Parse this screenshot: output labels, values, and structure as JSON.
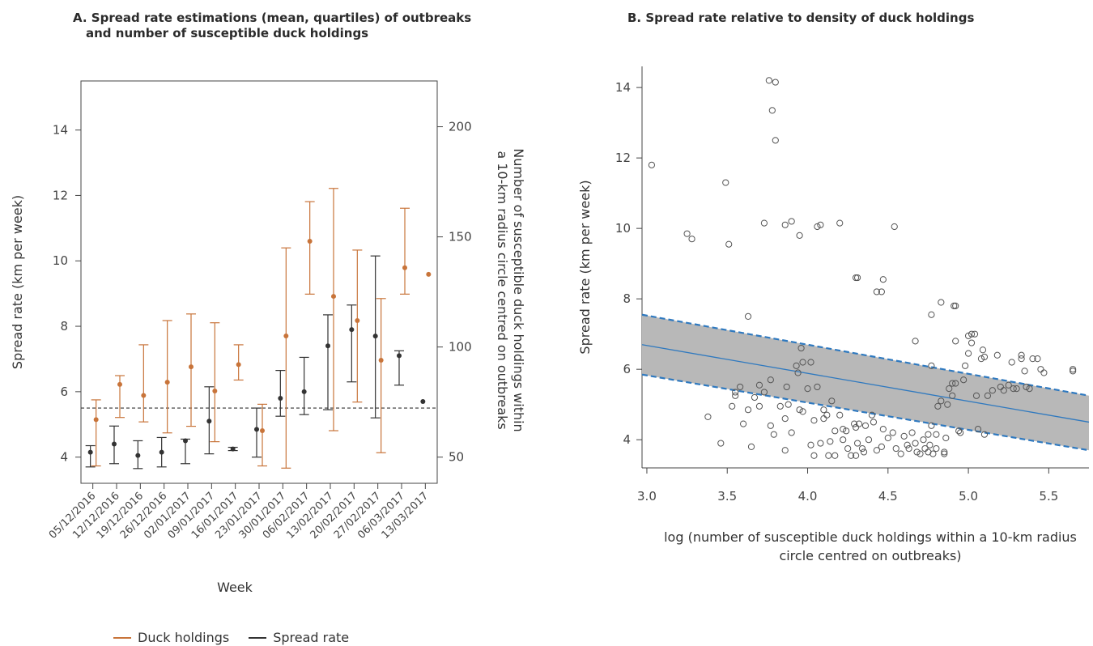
{
  "panel_a_title_line1": "A. Spread rate estimations (mean, quartiles) of outbreaks",
  "panel_a_title_line2": "and number of susceptible duck holdings",
  "panel_b_title": "B. Spread rate relative to density of duck holdings",
  "legend": {
    "duck": "Duck holdings",
    "spread": "Spread rate"
  },
  "chart_data": [
    {
      "type": "errorbar",
      "title": "A. Spread rate estimations (mean, quartiles) of outbreaks and number of susceptible duck holdings",
      "xlabel": "Week",
      "ylabel": "Spread rate (km per week)",
      "y2label_line1": "Number of susceptible duck holdings within",
      "y2label_line2": "a 10-km radius circle centred on outbreaks",
      "ylim": [
        3.2,
        15.5
      ],
      "yticks": [
        4,
        6,
        8,
        10,
        12,
        14
      ],
      "y2ticks": [
        50,
        100,
        150,
        200
      ],
      "y2_map": {
        "v1": 50,
        "y1": 4.0,
        "v2": 200,
        "y2": 14.1
      },
      "reference_line": 5.5,
      "categories": [
        "05/12/2016",
        "12/12/2016",
        "19/12/2016",
        "26/12/2016",
        "02/01/2017",
        "09/01/2017",
        "16/01/2017",
        "23/01/2017",
        "30/01/2017",
        "06/02/2017",
        "13/02/2017",
        "20/02/2017",
        "27/02/2017",
        "06/03/2017",
        "13/03/2017"
      ],
      "series": [
        {
          "name": "Spread rate",
          "color": "#333333",
          "mean": [
            4.15,
            4.4,
            4.05,
            4.15,
            4.5,
            5.1,
            4.25,
            4.85,
            5.8,
            6.0,
            7.4,
            7.9,
            7.7,
            7.1,
            5.7
          ],
          "lower": [
            3.7,
            3.8,
            3.65,
            3.7,
            3.8,
            4.1,
            4.2,
            4.0,
            5.25,
            5.3,
            5.45,
            6.3,
            5.2,
            6.2,
            null
          ],
          "upper": [
            4.35,
            4.95,
            4.5,
            4.6,
            4.55,
            6.15,
            4.3,
            5.5,
            6.65,
            7.05,
            8.35,
            8.65,
            10.15,
            7.25,
            null
          ]
        },
        {
          "name": "Duck holdings",
          "color": "#c8743a",
          "mean": [
            67,
            83,
            78,
            84,
            91,
            80,
            92,
            62,
            105,
            148,
            123,
            112,
            94,
            136,
            133
          ],
          "lower": [
            46,
            68,
            66,
            61,
            64,
            57,
            85,
            46,
            45,
            124,
            62,
            75,
            52,
            124,
            null
          ],
          "upper": [
            76,
            87,
            101,
            112,
            115,
            111,
            101,
            74,
            145,
            166,
            172,
            144,
            122,
            163,
            null
          ]
        }
      ]
    },
    {
      "type": "scatter",
      "title": "B. Spread rate relative to density of duck holdings",
      "xlabel_line1": "log (number of susceptible duck holdings within a 10-km radius",
      "xlabel_line2": "circle centred on outbreaks)",
      "ylabel": "Spread rate (km per week)",
      "xlim": [
        2.97,
        5.75
      ],
      "ylim": [
        3.2,
        14.6
      ],
      "xticks": [
        "3.0",
        "3.5",
        "4.0",
        "4.5",
        "5.0",
        "5.5"
      ],
      "yticks": [
        4,
        6,
        8,
        10,
        12,
        14
      ],
      "fit_line": {
        "x": [
          2.97,
          5.75
        ],
        "y": [
          6.7,
          4.5
        ],
        "color": "#2f79bf"
      },
      "confidence_band": {
        "x": [
          2.97,
          5.75
        ],
        "upper": [
          7.55,
          5.25
        ],
        "lower": [
          5.85,
          3.7
        ],
        "fill": "#b8b8b8",
        "edge_color": "#2f79bf"
      },
      "points": [
        [
          3.03,
          11.8
        ],
        [
          3.25,
          9.85
        ],
        [
          3.28,
          9.7
        ],
        [
          3.49,
          11.3
        ],
        [
          3.51,
          9.55
        ],
        [
          3.73,
          10.15
        ],
        [
          3.76,
          14.2
        ],
        [
          3.8,
          14.15
        ],
        [
          3.78,
          13.35
        ],
        [
          3.8,
          12.5
        ],
        [
          3.86,
          10.1
        ],
        [
          3.9,
          10.2
        ],
        [
          3.95,
          9.8
        ],
        [
          4.06,
          10.05
        ],
        [
          4.08,
          10.1
        ],
        [
          4.2,
          10.15
        ],
        [
          4.54,
          10.05
        ],
        [
          3.63,
          7.5
        ],
        [
          3.96,
          6.6
        ],
        [
          3.97,
          6.2
        ],
        [
          4.02,
          6.2
        ],
        [
          4.3,
          8.6
        ],
        [
          4.31,
          8.6
        ],
        [
          4.43,
          8.2
        ],
        [
          4.46,
          8.2
        ],
        [
          4.47,
          8.55
        ],
        [
          4.77,
          7.55
        ],
        [
          4.83,
          7.9
        ],
        [
          4.91,
          7.8
        ],
        [
          4.92,
          7.8
        ],
        [
          4.67,
          6.8
        ],
        [
          4.77,
          6.1
        ],
        [
          3.38,
          4.65
        ],
        [
          3.46,
          3.9
        ],
        [
          3.53,
          4.95
        ],
        [
          3.55,
          5.25
        ],
        [
          3.55,
          5.35
        ],
        [
          3.58,
          5.5
        ],
        [
          3.6,
          4.45
        ],
        [
          3.63,
          4.85
        ],
        [
          3.65,
          3.8
        ],
        [
          3.67,
          5.2
        ],
        [
          3.7,
          5.55
        ],
        [
          3.7,
          4.95
        ],
        [
          3.73,
          5.35
        ],
        [
          3.77,
          5.7
        ],
        [
          3.77,
          4.4
        ],
        [
          3.79,
          4.15
        ],
        [
          3.83,
          4.95
        ],
        [
          3.86,
          4.6
        ],
        [
          3.86,
          3.7
        ],
        [
          3.87,
          5.5
        ],
        [
          3.88,
          5.0
        ],
        [
          3.9,
          4.2
        ],
        [
          3.93,
          6.1
        ],
        [
          3.94,
          5.9
        ],
        [
          3.95,
          4.85
        ],
        [
          3.97,
          4.8
        ],
        [
          4.0,
          5.45
        ],
        [
          4.02,
          3.85
        ],
        [
          4.04,
          4.55
        ],
        [
          4.04,
          3.55
        ],
        [
          4.06,
          5.5
        ],
        [
          4.08,
          3.9
        ],
        [
          4.1,
          4.85
        ],
        [
          4.1,
          4.6
        ],
        [
          4.12,
          4.7
        ],
        [
          4.13,
          3.55
        ],
        [
          4.14,
          3.95
        ],
        [
          4.15,
          5.1
        ],
        [
          4.17,
          4.25
        ],
        [
          4.17,
          3.55
        ],
        [
          4.2,
          4.7
        ],
        [
          4.22,
          4.3
        ],
        [
          4.22,
          4.0
        ],
        [
          4.24,
          4.25
        ],
        [
          4.25,
          3.75
        ],
        [
          4.27,
          3.55
        ],
        [
          4.29,
          4.45
        ],
        [
          4.3,
          4.35
        ],
        [
          4.31,
          3.9
        ],
        [
          4.32,
          4.45
        ],
        [
          4.34,
          3.75
        ],
        [
          4.36,
          4.4
        ],
        [
          4.38,
          4.0
        ],
        [
          4.4,
          4.7
        ],
        [
          4.41,
          4.5
        ],
        [
          4.43,
          3.7
        ],
        [
          4.47,
          4.3
        ],
        [
          4.5,
          4.05
        ],
        [
          4.53,
          4.2
        ],
        [
          4.55,
          3.75
        ],
        [
          4.58,
          3.6
        ],
        [
          4.6,
          4.1
        ],
        [
          4.62,
          3.85
        ],
        [
          4.63,
          3.75
        ],
        [
          4.65,
          4.2
        ],
        [
          4.67,
          3.9
        ],
        [
          4.7,
          3.6
        ],
        [
          4.72,
          4.0
        ],
        [
          4.73,
          3.75
        ],
        [
          4.75,
          3.65
        ],
        [
          4.75,
          4.15
        ],
        [
          4.76,
          3.85
        ],
        [
          4.77,
          4.4
        ],
        [
          4.78,
          3.6
        ],
        [
          4.8,
          3.75
        ],
        [
          4.8,
          4.15
        ],
        [
          4.81,
          4.95
        ],
        [
          4.83,
          5.1
        ],
        [
          4.85,
          3.65
        ],
        [
          4.86,
          4.05
        ],
        [
          4.87,
          5.0
        ],
        [
          4.88,
          5.45
        ],
        [
          4.9,
          5.25
        ],
        [
          4.9,
          5.6
        ],
        [
          4.92,
          5.6
        ],
        [
          4.94,
          4.25
        ],
        [
          4.95,
          4.2
        ],
        [
          4.97,
          5.7
        ],
        [
          4.98,
          6.1
        ],
        [
          5.0,
          6.45
        ],
        [
          5.0,
          6.95
        ],
        [
          5.02,
          7.0
        ],
        [
          5.02,
          6.75
        ],
        [
          5.04,
          7.0
        ],
        [
          5.05,
          5.25
        ],
        [
          5.06,
          4.3
        ],
        [
          5.08,
          6.3
        ],
        [
          5.09,
          6.55
        ],
        [
          5.1,
          4.15
        ],
        [
          5.1,
          6.35
        ],
        [
          5.12,
          5.25
        ],
        [
          5.15,
          5.4
        ],
        [
          5.18,
          6.4
        ],
        [
          5.2,
          5.5
        ],
        [
          5.22,
          5.4
        ],
        [
          5.25,
          5.55
        ],
        [
          5.27,
          6.2
        ],
        [
          5.28,
          5.45
        ],
        [
          5.3,
          5.45
        ],
        [
          5.33,
          6.3
        ],
        [
          5.33,
          6.4
        ],
        [
          5.35,
          5.95
        ],
        [
          5.36,
          5.5
        ],
        [
          5.38,
          5.45
        ],
        [
          5.4,
          6.3
        ],
        [
          5.43,
          6.3
        ],
        [
          5.45,
          6.0
        ],
        [
          5.47,
          5.9
        ],
        [
          5.65,
          6.0
        ],
        [
          5.65,
          5.95
        ],
        [
          4.35,
          3.65
        ],
        [
          4.3,
          3.55
        ],
        [
          4.46,
          3.8
        ],
        [
          4.85,
          3.6
        ],
        [
          4.68,
          3.65
        ],
        [
          4.92,
          6.8
        ]
      ]
    }
  ]
}
